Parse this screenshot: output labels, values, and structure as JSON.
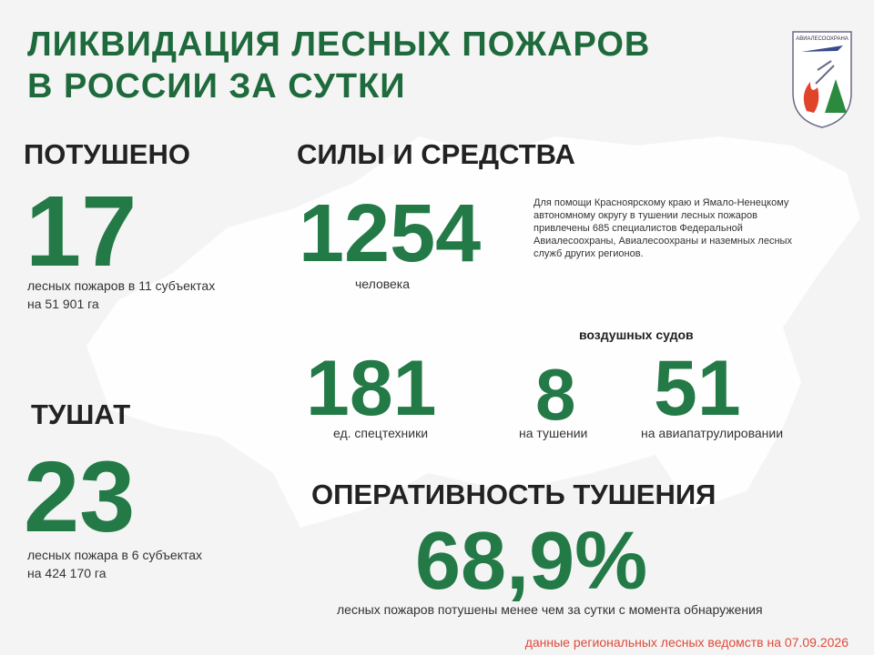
{
  "header": {
    "title_line1": "ЛИКВИДАЦИЯ ЛЕСНЫХ ПОЖАРОВ",
    "title_line2": "В РОССИИ ЗА СУТКИ",
    "logo_text": "АВИАЛЕСООХРАНА"
  },
  "extinguished": {
    "heading": "ПОТУШЕНО",
    "value": "17",
    "line1": "лесных  пожаров в 11 субъектах",
    "line2": "на 51 901 га"
  },
  "fighting": {
    "heading": "ТУШАТ",
    "value": "23",
    "line1": "лесных  пожара в 6 субъектах",
    "line2": "на  424 170 га"
  },
  "forces": {
    "heading": "СИЛЫ И СРЕДСТВА",
    "people_value": "1254",
    "people_label": "человека",
    "note": [
      "Для помощи Красноярскому краю и Ямало-Ненецкому",
      "автономному  округу в тушении  лесных пожаров",
      "привлечены  685 специалистов  Федеральной",
      "Авиалесоохраны,  Авиалесоохраны  и наземных лесных",
      "служб других регионов."
    ],
    "equipment_value": "181",
    "equipment_label": "ед. спецтехники",
    "aircraft_heading": "воздушных судов",
    "aircraft_fighting_value": "8",
    "aircraft_fighting_label": "на тушении",
    "aircraft_patrol_value": "51",
    "aircraft_patrol_label": "на авиапатрулировании"
  },
  "efficiency": {
    "heading": "ОПЕРАТИВНОСТЬ ТУШЕНИЯ",
    "value": "68,9%",
    "label": "лесных  пожаров потушены  менее чем за сутки  с момента  обнаружения"
  },
  "footer": {
    "source": "данные региональных лесных ведомств на 07.09.2026"
  }
}
